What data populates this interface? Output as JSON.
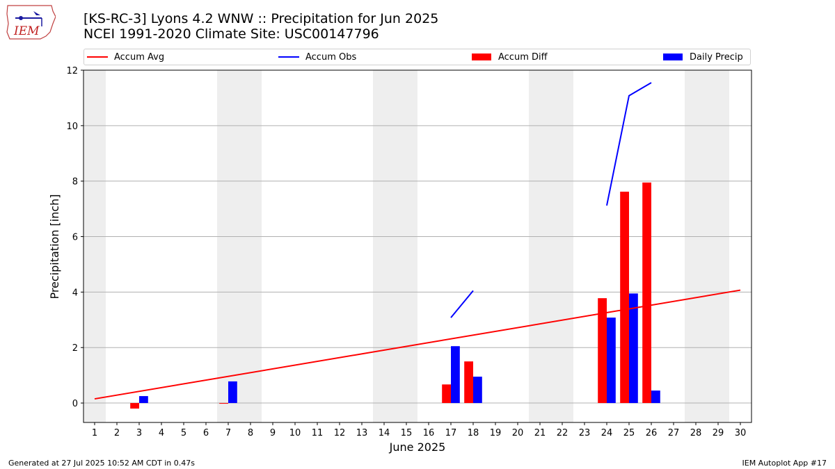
{
  "logo": {
    "text": "IEM"
  },
  "title_line1": "[KS-RC-3] Lyons 4.2 WNW :: Precipitation for Jun 2025",
  "title_line2": "NCEI 1991-2020 Climate Site: USC00147796",
  "legend": [
    {
      "label": "Accum Avg",
      "kind": "line",
      "color": "#ff0000"
    },
    {
      "label": "Accum Obs",
      "kind": "line",
      "color": "#0000ff"
    },
    {
      "label": "Accum Diff",
      "kind": "box",
      "color": "#ff0000"
    },
    {
      "label": "Daily Precip",
      "kind": "box",
      "color": "#0000ff"
    }
  ],
  "footer_left": "Generated at 27 Jul 2025 10:52 AM CDT in 0.47s",
  "footer_right": "IEM Autoplot App #17",
  "chart_data": {
    "type": "bar",
    "xlabel": "June 2025",
    "ylabel": "Precipitation [inch]",
    "x_ticks": [
      1,
      2,
      3,
      4,
      5,
      6,
      7,
      8,
      9,
      10,
      11,
      12,
      13,
      14,
      15,
      16,
      17,
      18,
      19,
      20,
      21,
      22,
      23,
      24,
      25,
      26,
      27,
      28,
      29,
      30
    ],
    "xlim": [
      0.5,
      30.5
    ],
    "ylim": [
      -0.7,
      12
    ],
    "y_ticks": [
      0,
      2,
      4,
      6,
      8,
      10,
      12
    ],
    "grid": "horizontal",
    "weekend_shading": [
      [
        0.5,
        1.5
      ],
      [
        6.5,
        8.5
      ],
      [
        13.5,
        15.5
      ],
      [
        20.5,
        22.5
      ],
      [
        27.5,
        29.5
      ]
    ],
    "colors": {
      "avg": "#ff0000",
      "obs": "#0000ff",
      "diff": "#ff0000",
      "daily": "#0000ff",
      "shade": "#eeeeee",
      "grid": "#b0b0b0"
    },
    "accum_avg": {
      "x": [
        1,
        30
      ],
      "y": [
        0.15,
        4.07
      ]
    },
    "accum_obs_segments": [
      {
        "x": [
          17,
          18
        ],
        "y": [
          3.08,
          4.05
        ]
      },
      {
        "x": [
          24,
          25,
          26
        ],
        "y": [
          7.12,
          11.08,
          11.55
        ]
      }
    ],
    "accum_diff": [
      {
        "day": 3,
        "value": -0.2
      },
      {
        "day": 7,
        "value": -0.02
      },
      {
        "day": 17,
        "value": 0.67
      },
      {
        "day": 18,
        "value": 1.5
      },
      {
        "day": 24,
        "value": 3.78
      },
      {
        "day": 25,
        "value": 7.62
      },
      {
        "day": 26,
        "value": 7.95
      }
    ],
    "daily_precip": [
      {
        "day": 3,
        "value": 0.25
      },
      {
        "day": 7,
        "value": 0.78
      },
      {
        "day": 17,
        "value": 2.05
      },
      {
        "day": 18,
        "value": 0.95
      },
      {
        "day": 24,
        "value": 3.08
      },
      {
        "day": 25,
        "value": 3.95
      },
      {
        "day": 26,
        "value": 0.45
      }
    ]
  }
}
